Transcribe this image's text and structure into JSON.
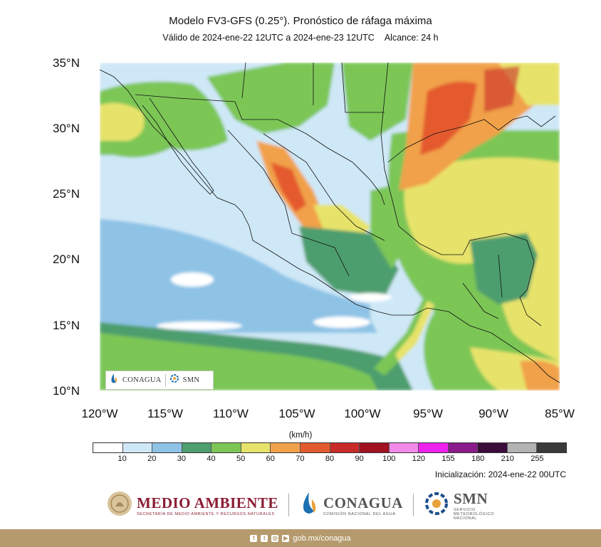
{
  "title": "Modelo FV3-GFS (0.25°). Pronóstico de ráfaga máxima",
  "subtitle": {
    "validity": "Válido de 2024-ene-22 12UTC a 2024-ene-23 12UTC",
    "range": "Alcance: 24 h"
  },
  "map": {
    "lat_labels": [
      "35°N",
      "30°N",
      "25°N",
      "20°N",
      "15°N",
      "10°N"
    ],
    "lon_labels": [
      "120°W",
      "115°W",
      "110°W",
      "105°W",
      "100°W",
      "95°W",
      "90°W",
      "85°W"
    ],
    "extent": {
      "lon": [
        -120,
        -85
      ],
      "lat": [
        10,
        35
      ]
    },
    "logo_text": {
      "conagua": "CONAGUA",
      "smn": "SMN"
    }
  },
  "colorbar": {
    "units": "(km/h)",
    "colors": [
      "#ffffff",
      "#cfe8f7",
      "#8ec3e6",
      "#4e9e6e",
      "#7cc656",
      "#e7e36a",
      "#f1a14a",
      "#e45a2f",
      "#c92b29",
      "#a11221",
      "#f28be8",
      "#ee22ee",
      "#8a1b8a",
      "#3b0d3b",
      "#b3b3b3",
      "#3a3a3a"
    ],
    "ticks": [
      "10",
      "20",
      "30",
      "40",
      "50",
      "60",
      "70",
      "80",
      "90",
      "100",
      "120",
      "155",
      "180",
      "210",
      "255"
    ]
  },
  "initialization": "Inicialización: 2024-ene-22 00UTC",
  "footer": {
    "medio_ambiente": "MEDIO AMBIENTE",
    "medio_ambiente_sub": "SECRETARÍA DE MEDIO AMBIENTE Y RECURSOS NATURALES",
    "conagua": "CONAGUA",
    "conagua_sub": "COMISIÓN NACIONAL DEL AGUA",
    "smn": "SMN",
    "smn_sub": "SERVICIO METEOROLÓGICO NACIONAL",
    "url": "gob.mx/conagua",
    "social_icons": [
      "facebook-icon",
      "twitter-icon",
      "instagram-icon",
      "youtube-icon"
    ]
  }
}
